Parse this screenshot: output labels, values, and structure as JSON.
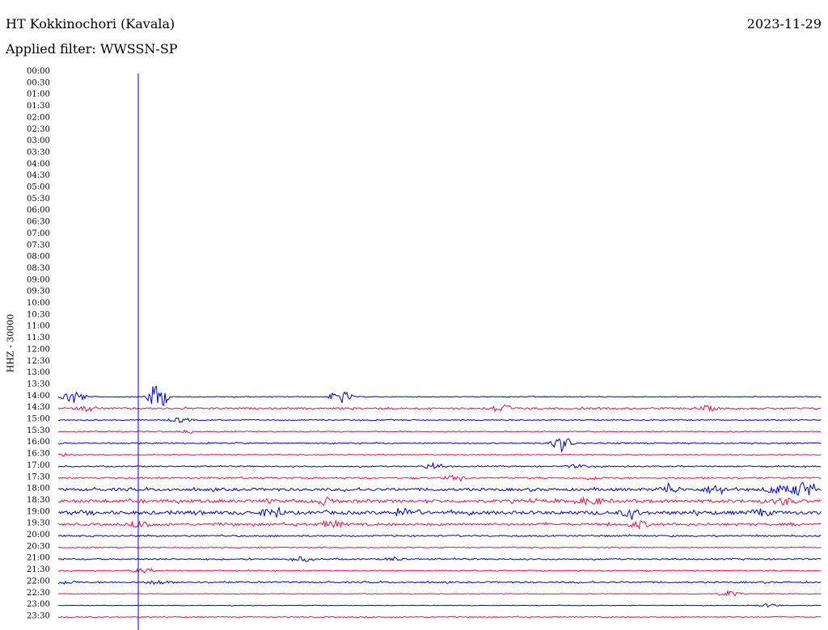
{
  "header": {
    "station": "HT Kokkinochori (Kavala)",
    "filter": "Applied filter: WWSSN-SP",
    "date": "2023-11-29"
  },
  "chart_data": {
    "type": "line",
    "title": "HT Kokkinochori (Kavala)",
    "subtitle": "Applied filter: WWSSN-SP",
    "ylabel": "HHZ - 30000",
    "time_labels": [
      "00:00",
      "00:30",
      "01:00",
      "01:30",
      "02:00",
      "02:30",
      "03:00",
      "03:30",
      "04:00",
      "04:30",
      "05:00",
      "05:30",
      "06:00",
      "06:30",
      "07:00",
      "07:30",
      "08:00",
      "08:30",
      "09:00",
      "09:30",
      "10:00",
      "10:30",
      "11:00",
      "11:30",
      "12:00",
      "12:30",
      "13:00",
      "13:30",
      "14:00",
      "14:30",
      "15:00",
      "15:30",
      "16:00",
      "16:30",
      "17:00",
      "17:30",
      "18:00",
      "18:30",
      "19:00",
      "19:30",
      "20:00",
      "20:30",
      "21:00",
      "21:30",
      "22:00",
      "22:30",
      "23:00",
      "23:30"
    ],
    "first_trace_index": 28,
    "series_colors": [
      "#0000cc",
      "#ee1144"
    ],
    "current_time_marker": {
      "color": "#0000cc"
    },
    "traces": [
      {
        "time": "14:00",
        "noise": 0.5,
        "events": [
          {
            "pos": 0.02,
            "amp": 10
          },
          {
            "pos": 0.13,
            "amp": 18
          },
          {
            "pos": 0.37,
            "amp": 9
          }
        ]
      },
      {
        "time": "14:30",
        "noise": 1.0,
        "events": [
          {
            "pos": 0.04,
            "amp": 3
          },
          {
            "pos": 0.58,
            "amp": 6
          },
          {
            "pos": 0.85,
            "amp": 3
          }
        ]
      },
      {
        "time": "15:00",
        "noise": 0.6,
        "events": [
          {
            "pos": 0.16,
            "amp": 3
          }
        ]
      },
      {
        "time": "15:30",
        "noise": 0.6,
        "events": [
          {
            "pos": 0.17,
            "amp": 2
          }
        ]
      },
      {
        "time": "16:00",
        "noise": 0.7,
        "events": [
          {
            "pos": 0.66,
            "amp": 10
          }
        ]
      },
      {
        "time": "16:30",
        "noise": 0.5,
        "events": [
          {
            "pos": 0.01,
            "amp": 2
          }
        ]
      },
      {
        "time": "17:00",
        "noise": 0.7,
        "events": [
          {
            "pos": 0.49,
            "amp": 3
          },
          {
            "pos": 0.68,
            "amp": 2
          }
        ]
      },
      {
        "time": "17:30",
        "noise": 0.8,
        "events": [
          {
            "pos": 0.52,
            "amp": 3
          },
          {
            "pos": 0.7,
            "amp": 2
          }
        ]
      },
      {
        "time": "18:00",
        "noise": 1.6,
        "events": [
          {
            "pos": 0.8,
            "amp": 5
          },
          {
            "pos": 0.86,
            "amp": 5
          },
          {
            "pos": 0.94,
            "amp": 5
          },
          {
            "pos": 0.975,
            "amp": 10
          }
        ]
      },
      {
        "time": "18:30",
        "noise": 1.8,
        "events": [
          {
            "pos": 0.35,
            "amp": 4
          },
          {
            "pos": 0.7,
            "amp": 4
          },
          {
            "pos": 0.95,
            "amp": 4
          }
        ]
      },
      {
        "time": "19:00",
        "noise": 2.0,
        "events": [
          {
            "pos": 0.28,
            "amp": 4
          },
          {
            "pos": 0.46,
            "amp": 5
          },
          {
            "pos": 0.75,
            "amp": 4
          },
          {
            "pos": 0.92,
            "amp": 4
          }
        ]
      },
      {
        "time": "19:30",
        "noise": 1.4,
        "events": [
          {
            "pos": 0.11,
            "amp": 4
          },
          {
            "pos": 0.36,
            "amp": 4
          },
          {
            "pos": 0.76,
            "amp": 4
          }
        ]
      },
      {
        "time": "20:00",
        "noise": 0.9,
        "events": []
      },
      {
        "time": "20:30",
        "noise": 0.6,
        "events": []
      },
      {
        "time": "21:00",
        "noise": 0.8,
        "events": [
          {
            "pos": 0.32,
            "amp": 3
          },
          {
            "pos": 0.44,
            "amp": 2
          }
        ]
      },
      {
        "time": "21:30",
        "noise": 0.6,
        "events": [
          {
            "pos": 0.11,
            "amp": 3
          }
        ]
      },
      {
        "time": "22:00",
        "noise": 0.9,
        "events": [
          {
            "pos": 0.01,
            "amp": 2
          },
          {
            "pos": 0.13,
            "amp": 2
          }
        ]
      },
      {
        "time": "22:30",
        "noise": 0.4,
        "events": [
          {
            "pos": 0.88,
            "amp": 4
          }
        ]
      },
      {
        "time": "23:00",
        "noise": 0.3,
        "events": [
          {
            "pos": 0.93,
            "amp": 2
          }
        ]
      },
      {
        "time": "23:30",
        "noise": 0.6,
        "events": []
      }
    ]
  }
}
